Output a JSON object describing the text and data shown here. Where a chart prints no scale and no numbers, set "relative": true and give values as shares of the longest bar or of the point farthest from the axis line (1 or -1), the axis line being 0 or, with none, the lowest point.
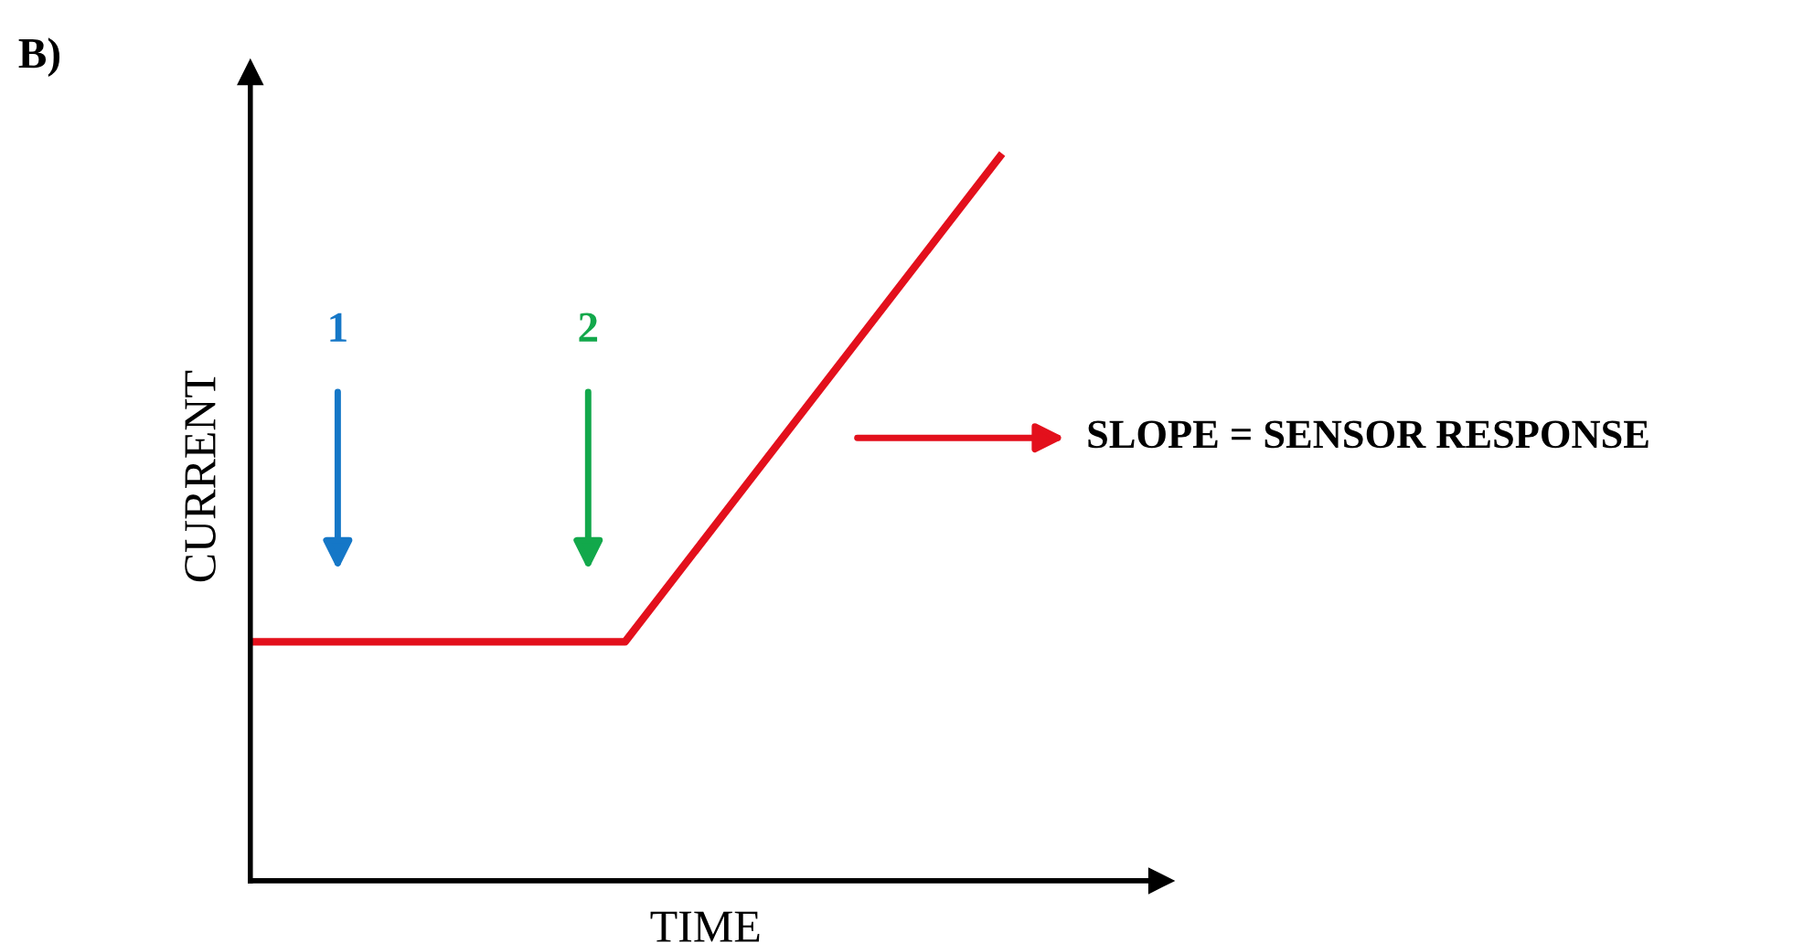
{
  "chart_data": {
    "type": "line",
    "title": "B)",
    "xlabel": "TIME",
    "ylabel": "CURRENT",
    "relative": true,
    "categories": [
      null,
      null,
      null
    ],
    "series": [
      {
        "color": "#e3101c",
        "values": [
          0.33,
          0.33,
          1
        ]
      }
    ],
    "annotations": [
      "1",
      "2",
      "SLOPE = SENSOR RESPONSE"
    ]
  }
}
